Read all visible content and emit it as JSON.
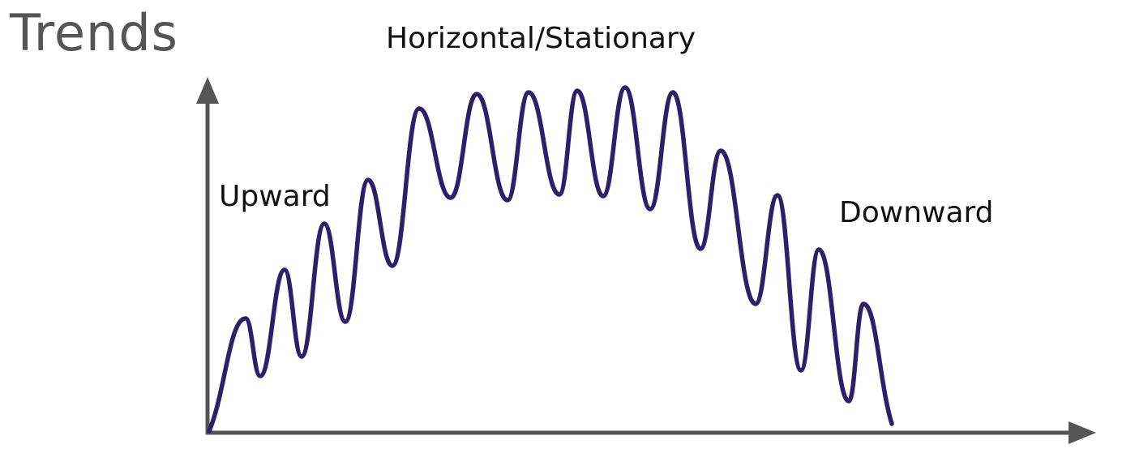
{
  "title": "Trends",
  "labels": {
    "upward": "Upward",
    "horizontal": "Horizontal/Stationary",
    "downward": "Downward"
  },
  "colors": {
    "curve": "#2e1f6b",
    "axis": "#555555",
    "title": "#555555",
    "label": "#111111"
  }
}
